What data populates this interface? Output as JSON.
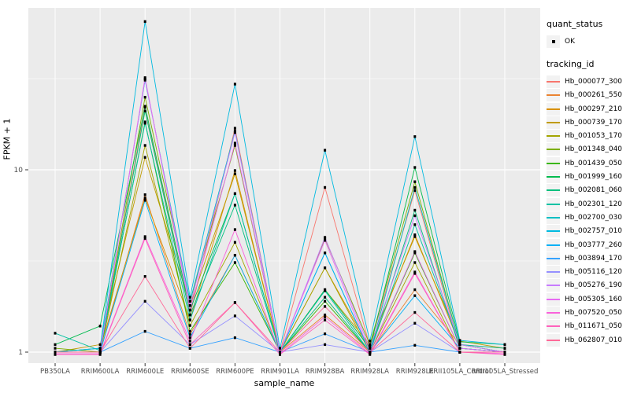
{
  "figure": {
    "y_axis_title": "FPKM + 1",
    "x_axis_title": "sample_name",
    "y_tick_labels": [
      "10",
      "1"
    ]
  },
  "legend": {
    "quant_title": "quant_status",
    "quant_items": [
      {
        "label": "OK",
        "marker": "black-point"
      }
    ],
    "tracking_title": "tracking_id"
  },
  "colors": {
    "panel_background": "#EBEBEB",
    "gridline": "#FFFFFF",
    "tick_mark": "#333333",
    "tick_label": "#4D4D4D",
    "point": "#000000",
    "legend_key_background": "#F2F2F2"
  },
  "chart_data": {
    "type": "line",
    "title": "",
    "xlabel": "sample_name",
    "ylabel": "FPKM + 1",
    "y_scale": "log10",
    "y_ticks": [
      1,
      10
    ],
    "ylim": [
      0.93,
      77
    ],
    "grid": true,
    "legend_position": "right",
    "point_marker": "black dot on every value (quant_status OK)",
    "categories": [
      "PB350LA",
      "RRIM600LA",
      "RRIM600LE",
      "RRIM600SE",
      "RRIM600PE",
      "RRIM901LA",
      "RRIM928BA",
      "RRIM928LA",
      "RRIM928LE",
      "RRII105LA_Control",
      "RRII105LA_Stressed"
    ],
    "series": [
      {
        "name": "Hb_000077_300",
        "color": "#F8766D",
        "values": [
          1.0,
          1.0,
          22.0,
          1.6,
          16.9,
          1.0,
          8.0,
          1.08,
          7.7,
          1.05,
          1.0
        ]
      },
      {
        "name": "Hb_000261_550",
        "color": "#EA8331",
        "values": [
          1.0,
          1.0,
          7.3,
          1.25,
          3.4,
          1.0,
          1.6,
          1.0,
          2.2,
          1.1,
          1.05
        ]
      },
      {
        "name": "Hb_000297_210",
        "color": "#D89000",
        "values": [
          1.0,
          1.05,
          7.0,
          1.5,
          9.9,
          1.0,
          2.9,
          1.05,
          4.4,
          1.1,
          1.0
        ]
      },
      {
        "name": "Hb_000739_170",
        "color": "#C09B00",
        "values": [
          1.0,
          1.1,
          11.7,
          1.8,
          9.5,
          1.0,
          2.2,
          1.1,
          4.3,
          1.15,
          1.05
        ]
      },
      {
        "name": "Hb_001053_170",
        "color": "#A3A500",
        "values": [
          1.0,
          1.0,
          13.6,
          1.4,
          4.0,
          1.0,
          2.9,
          1.0,
          3.1,
          1.0,
          1.0
        ]
      },
      {
        "name": "Hb_001348_040",
        "color": "#7CAE00",
        "values": [
          1.05,
          1.0,
          25.0,
          1.9,
          13.6,
          1.0,
          4.2,
          1.1,
          8.6,
          1.1,
          1.0
        ]
      },
      {
        "name": "Hb_001439_050",
        "color": "#39B600",
        "values": [
          1.0,
          1.0,
          18.3,
          1.3,
          3.1,
          1.0,
          1.9,
          1.0,
          3.5,
          1.05,
          1.0
        ]
      },
      {
        "name": "Hb_001999_160",
        "color": "#00BB4E",
        "values": [
          1.1,
          1.39,
          22.3,
          1.7,
          7.4,
          1.0,
          2.2,
          1.05,
          10.3,
          1.14,
          1.1
        ]
      },
      {
        "name": "Hb_002081_060",
        "color": "#00BF7D",
        "values": [
          1.0,
          1.0,
          21.0,
          1.6,
          6.4,
          1.0,
          2.0,
          1.0,
          6.0,
          1.05,
          1.0
        ]
      },
      {
        "name": "Hb_002301_120",
        "color": "#00C1A3",
        "values": [
          1.27,
          1.02,
          18.0,
          1.5,
          7.4,
          1.0,
          2.17,
          1.0,
          5.0,
          1.1,
          1.05
        ]
      },
      {
        "name": "Hb_002700_030",
        "color": "#00BFC4",
        "values": [
          1.0,
          1.05,
          31.0,
          1.9,
          16.3,
          1.0,
          3.5,
          1.0,
          8.0,
          1.1,
          1.0
        ]
      },
      {
        "name": "Hb_002757_010",
        "color": "#00BAE0",
        "values": [
          1.0,
          1.05,
          65.0,
          2.0,
          29.5,
          1.05,
          12.8,
          1.15,
          15.2,
          1.16,
          1.1
        ]
      },
      {
        "name": "Hb_003777_260",
        "color": "#00B0F6",
        "values": [
          1.0,
          1.0,
          6.8,
          1.2,
          3.4,
          1.0,
          3.5,
          1.0,
          2.04,
          1.05,
          1.0
        ]
      },
      {
        "name": "Hb_003894_170",
        "color": "#35A2FF",
        "values": [
          1.0,
          1.0,
          1.3,
          1.05,
          1.2,
          1.0,
          1.26,
          1.0,
          1.09,
          1.0,
          1.0
        ]
      },
      {
        "name": "Hb_005116_120",
        "color": "#9590FF",
        "values": [
          1.0,
          1.0,
          1.9,
          1.1,
          1.58,
          1.0,
          1.1,
          1.0,
          1.44,
          1.0,
          1.0
        ]
      },
      {
        "name": "Hb_005276_190",
        "color": "#C77CFF",
        "values": [
          1.0,
          1.0,
          31.5,
          1.8,
          16.0,
          1.0,
          4.26,
          1.05,
          5.6,
          1.1,
          1.0
        ]
      },
      {
        "name": "Hb_005305_160",
        "color": "#E76BF3",
        "values": [
          1.0,
          1.0,
          32.0,
          1.7,
          14.0,
          1.0,
          4.1,
          1.0,
          3.56,
          1.05,
          1.0
        ]
      },
      {
        "name": "Hb_007520_050",
        "color": "#FA62DB",
        "values": [
          0.98,
          0.98,
          4.3,
          1.15,
          4.7,
          0.98,
          1.56,
          0.98,
          2.75,
          1.0,
          0.98
        ]
      },
      {
        "name": "Hb_011671_050",
        "color": "#FF62BC",
        "values": [
          0.97,
          0.97,
          4.2,
          1.1,
          1.87,
          0.97,
          1.5,
          0.97,
          2.7,
          1.0,
          0.97
        ]
      },
      {
        "name": "Hb_062807_010",
        "color": "#FF6A98",
        "values": [
          1.0,
          1.0,
          2.6,
          1.05,
          1.87,
          1.0,
          1.78,
          1.0,
          1.65,
          1.0,
          1.0
        ]
      }
    ]
  }
}
